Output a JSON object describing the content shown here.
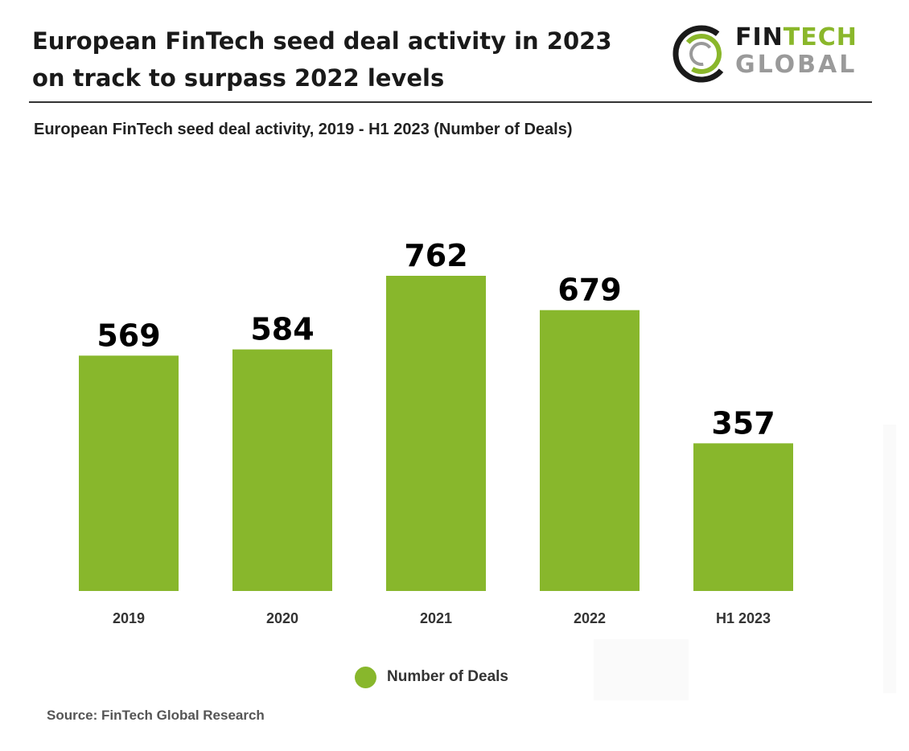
{
  "header": {
    "headline_line1": "European FinTech seed deal activity in 2023",
    "headline_line2": "on track to surpass 2022 levels",
    "subtitle": "European FinTech seed deal activity, 2019 - H1 2023 (Number of Deals)"
  },
  "logo": {
    "line1_part1": "FIN",
    "line1_part2": "TECH",
    "line2": "GLOBAL",
    "colors": {
      "dark": "#1a1a1a",
      "green": "#8ab72b",
      "grey": "#9a9a9a"
    }
  },
  "chart_data": {
    "type": "bar",
    "title": "",
    "categories": [
      "2019",
      "2020",
      "2021",
      "2022",
      "H1 2023"
    ],
    "series": [
      {
        "name": "Number of Deals",
        "values": [
          569,
          584,
          762,
          679,
          357
        ],
        "color": "#88b72c"
      }
    ],
    "xlabel": "",
    "ylabel": "",
    "ylim": [
      0,
      762
    ],
    "grid": false,
    "legend": "bottom-center",
    "data_labels": [
      "569",
      "584",
      "762",
      "679",
      "357"
    ]
  },
  "legend": {
    "label": "Number of Deals"
  },
  "footer": {
    "source": "Source: FinTech Global Research"
  }
}
